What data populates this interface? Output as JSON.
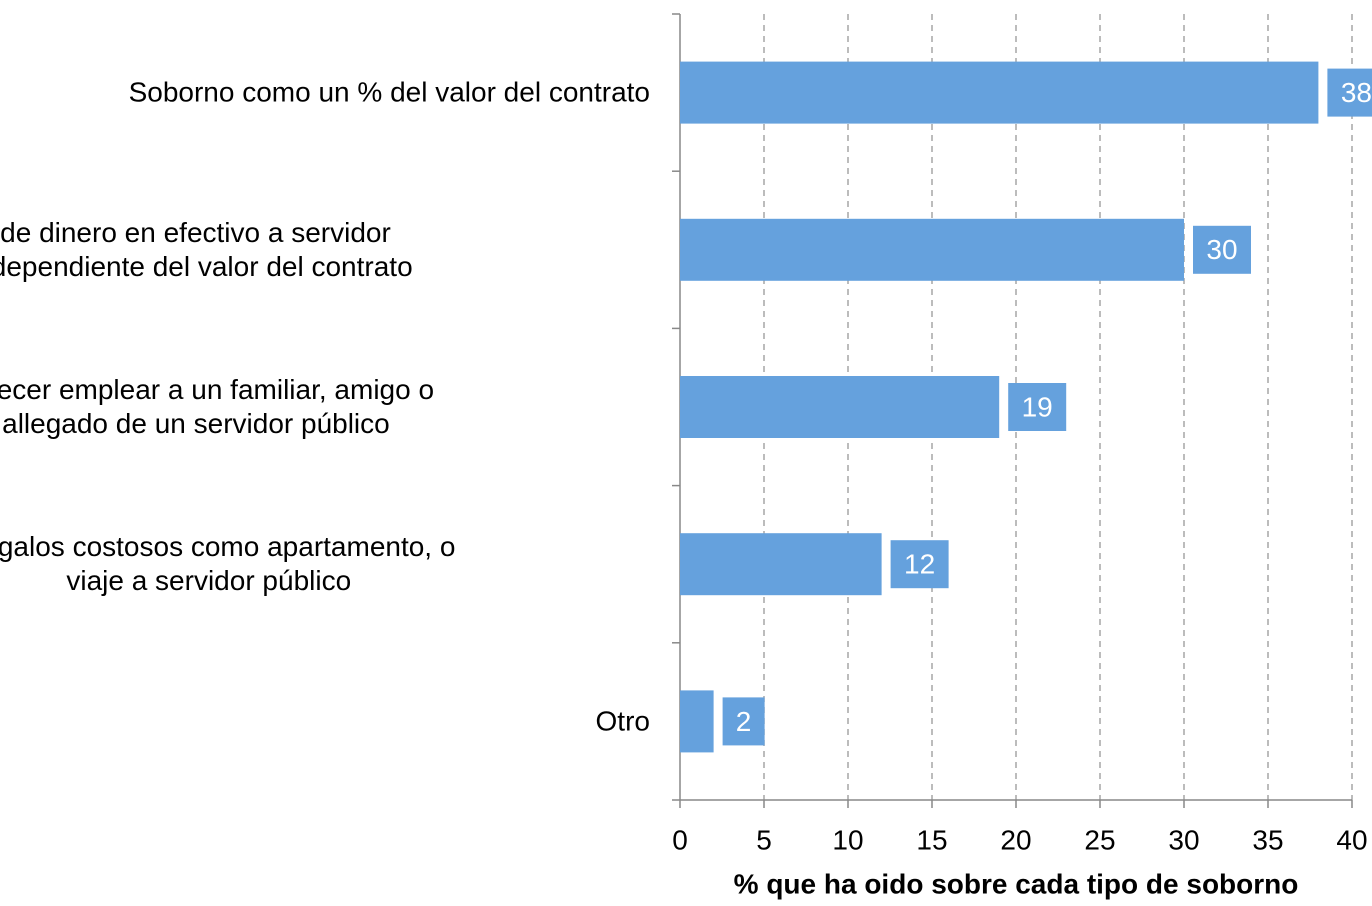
{
  "chart_data": {
    "type": "barh",
    "xlabel": "% que ha oido sobre cada tipo de soborno",
    "categories": [
      "Soborno como un % del valor del contrato",
      "Entrega de dinero en efectivo a servidor\npúblico independiente del valor del contrato",
      "Ofrecer emplear a un familiar, amigo o\nallegado de un servidor público",
      "Regalos costosos como apartamento, o\nviaje a servidor público",
      "Otro"
    ],
    "values": [
      38,
      30,
      19,
      12,
      2
    ],
    "color": "#65a1dd",
    "xlim": [
      0,
      40
    ],
    "xticks": [
      0,
      5,
      10,
      15,
      20,
      25,
      30,
      35,
      40
    ],
    "grid": true
  }
}
